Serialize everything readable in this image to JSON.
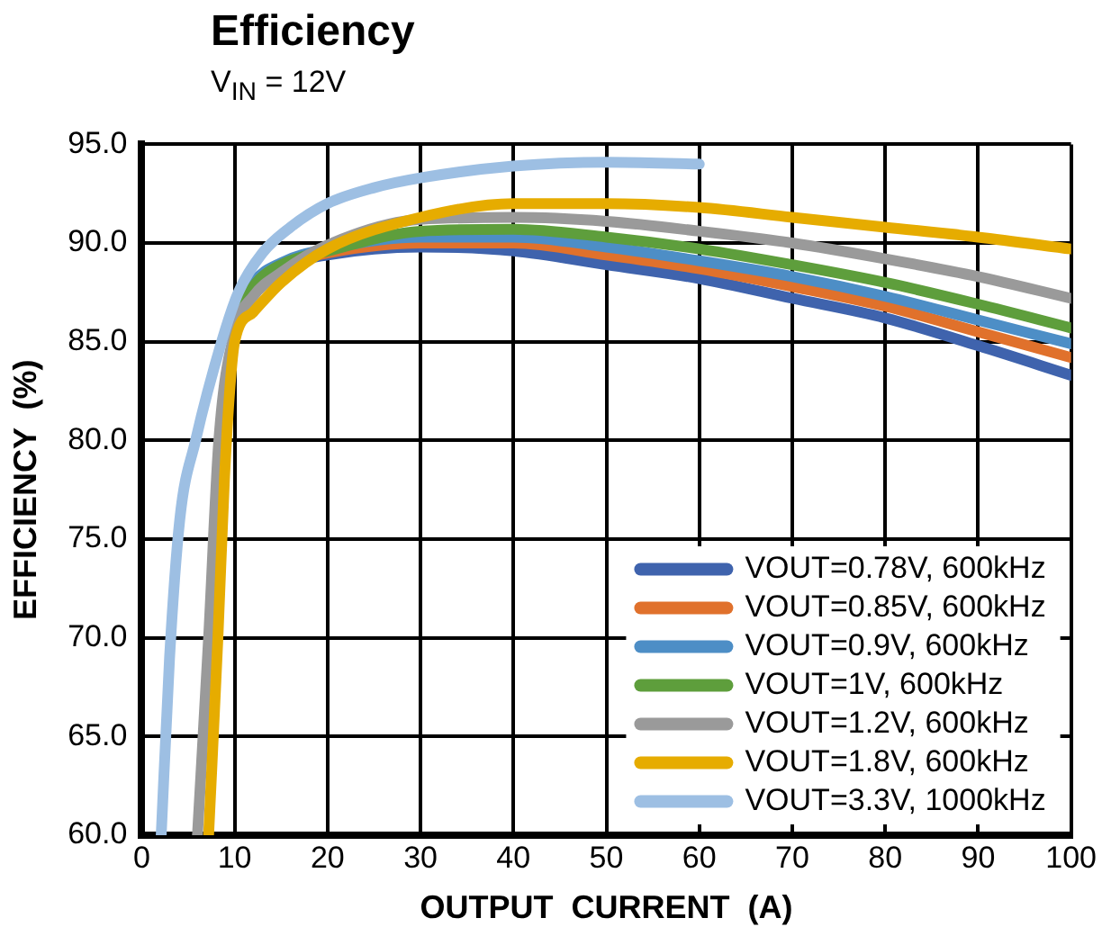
{
  "chart_data": {
    "type": "line",
    "title": "Efficiency",
    "subtitle": "V$_{IN}$ = 12V",
    "xlabel": "OUTPUT  CURRENT  (A)",
    "ylabel": "EFFICIENCY  (%)",
    "xlim": [
      0,
      100
    ],
    "xticks": [
      0,
      10,
      20,
      30,
      40,
      50,
      60,
      70,
      80,
      90,
      100
    ],
    "ylim": [
      60,
      95
    ],
    "yticks": [
      {
        "value": 60,
        "label": "60.0"
      },
      {
        "value": 65,
        "label": "65.0"
      },
      {
        "value": 70,
        "label": "70.0"
      },
      {
        "value": 75,
        "label": "75.0"
      },
      {
        "value": 80,
        "label": "80.0"
      },
      {
        "value": 85,
        "label": "85.0"
      },
      {
        "value": 90,
        "label": "90.0"
      },
      {
        "value": 95,
        "label": "95.0"
      }
    ],
    "grid": true,
    "legend": "bottom right",
    "marker": "none",
    "line_style": "solid",
    "series": [
      {
        "name": "VOUT=0.78V, 600kHz",
        "color": "#3f63ad",
        "x": [
          10,
          12,
          15,
          20,
          30,
          40,
          50,
          60,
          70,
          80,
          90,
          100
        ],
        "values": [
          86,
          87.8,
          88.8,
          89.4,
          89.8,
          89.6,
          88.9,
          88.2,
          87.2,
          86.2,
          84.8,
          83.3
        ]
      },
      {
        "name": "VOUT=0.85V, 600kHz",
        "color": "#e0712c",
        "x": [
          15,
          20,
          30,
          40,
          50,
          60,
          70,
          80,
          90,
          100
        ],
        "values": [
          88.9,
          89.5,
          90,
          90,
          89.4,
          88.7,
          87.8,
          86.8,
          85.5,
          84.2
        ]
      },
      {
        "name": "VOUT=0.9V, 600kHz",
        "color": "#4d8ec6",
        "x": [
          10,
          12,
          15,
          20,
          30,
          40,
          50,
          60,
          70,
          80,
          90,
          100
        ],
        "values": [
          86.2,
          88,
          89,
          89.7,
          90.3,
          90.3,
          89.8,
          89.1,
          88.3,
          87.3,
          86.1,
          84.9
        ]
      },
      {
        "name": "VOUT=1V, 600kHz",
        "color": "#5e9e3c",
        "x": [
          10,
          12,
          15,
          20,
          30,
          40,
          50,
          60,
          70,
          80,
          90,
          100
        ],
        "values": [
          86,
          87.8,
          88.9,
          89.6,
          90.6,
          90.7,
          90.3,
          89.7,
          88.9,
          88,
          86.9,
          85.7
        ]
      },
      {
        "name": "VOUT=1.2V, 600kHz",
        "color": "#9a9a9a",
        "x": [
          6,
          7.2,
          8.3,
          10,
          12,
          15,
          20,
          30,
          40,
          50,
          60,
          70,
          80,
          90,
          100
        ],
        "values": [
          60,
          70,
          80,
          85.5,
          87.3,
          88.5,
          89.9,
          91.2,
          91.3,
          91.1,
          90.6,
          90,
          89.2,
          88.3,
          87.2
        ]
      },
      {
        "name": "VOUT=1.8V, 600kHz",
        "color": "#e6ac00",
        "x": [
          7.2,
          8.2,
          8.9,
          9.5,
          10,
          12,
          15,
          20,
          30,
          40,
          50,
          60,
          70,
          80,
          90,
          100
        ],
        "values": [
          60,
          70,
          78,
          82.7,
          85,
          86.5,
          88,
          89.7,
          91.3,
          92,
          92,
          91.8,
          91.3,
          90.8,
          90.3,
          89.7
        ]
      },
      {
        "name": "VOUT=3.3V, 1000kHz",
        "color": "#9dbfe3",
        "x": [
          2.1,
          3,
          4.1,
          5.8,
          8.6,
          10.4,
          13,
          16,
          20,
          25,
          30,
          40,
          50,
          60
        ],
        "values": [
          60,
          69,
          76,
          80,
          85,
          87.5,
          89.5,
          90.8,
          92,
          92.8,
          93.3,
          93.9,
          94.1,
          94
        ]
      }
    ]
  }
}
